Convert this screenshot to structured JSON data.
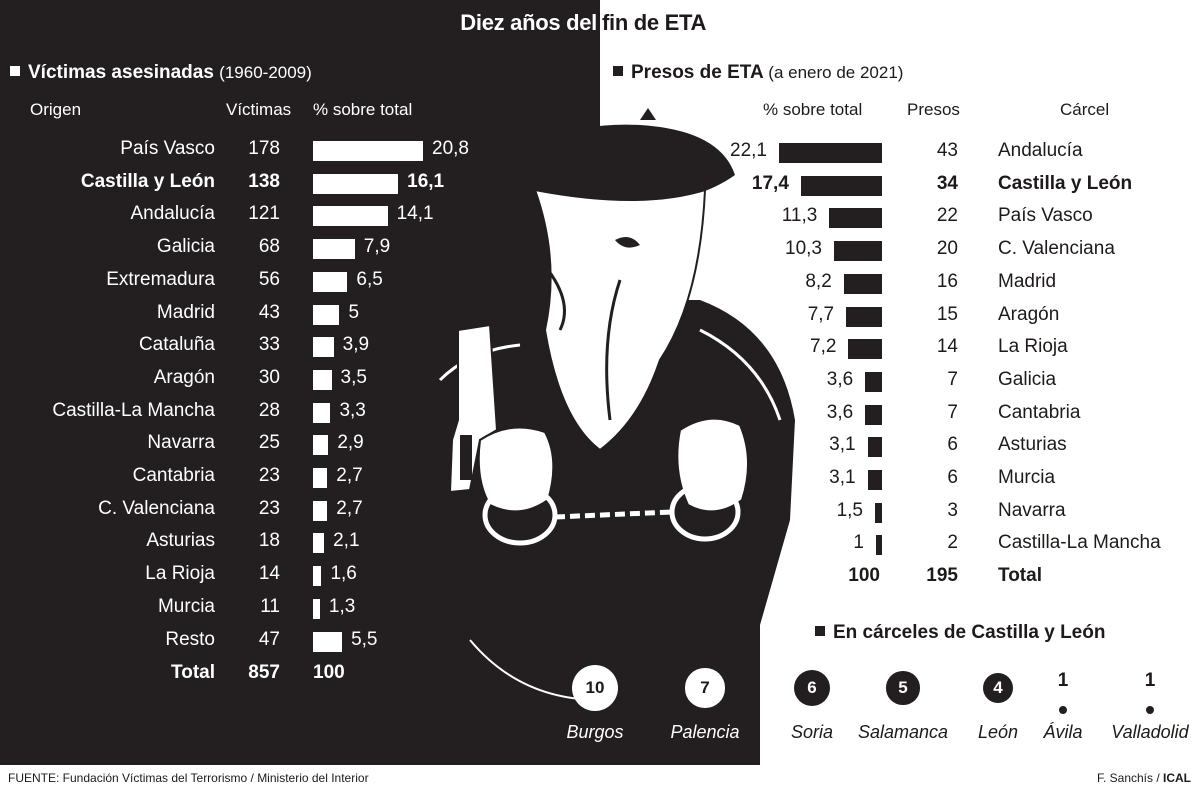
{
  "title": "Diez años del fin de ETA",
  "title_left": "Diez años del",
  "title_right": "fin de ETA",
  "victims": {
    "heading": "Víctimas asesinadas",
    "period": "(1960-2009)",
    "col_origin": "Origen",
    "col_victims": "Víctimas",
    "col_pct": "% sobre total",
    "rows": [
      {
        "origin": "País Vasco",
        "victims": "178",
        "pct": "20,8",
        "value": 20.8
      },
      {
        "origin": "Castilla y León",
        "victims": "138",
        "pct": "16,1",
        "value": 16.1,
        "bold": true
      },
      {
        "origin": "Andalucía",
        "victims": "121",
        "pct": "14,1",
        "value": 14.1
      },
      {
        "origin": "Galicia",
        "victims": "68",
        "pct": "7,9",
        "value": 7.9
      },
      {
        "origin": "Extremadura",
        "victims": "56",
        "pct": "6,5",
        "value": 6.5
      },
      {
        "origin": "Madrid",
        "victims": "43",
        "pct": "5",
        "value": 5
      },
      {
        "origin": "Cataluña",
        "victims": "33",
        "pct": "3,9",
        "value": 3.9
      },
      {
        "origin": "Aragón",
        "victims": "30",
        "pct": "3,5",
        "value": 3.5
      },
      {
        "origin": "Castilla-La Mancha",
        "victims": "28",
        "pct": "3,3",
        "value": 3.3
      },
      {
        "origin": "Navarra",
        "victims": "25",
        "pct": "2,9",
        "value": 2.9
      },
      {
        "origin": "Cantabria",
        "victims": "23",
        "pct": "2,7",
        "value": 2.7
      },
      {
        "origin": "C. Valenciana",
        "victims": "23",
        "pct": "2,7",
        "value": 2.7
      },
      {
        "origin": "Asturias",
        "victims": "18",
        "pct": "2,1",
        "value": 2.1
      },
      {
        "origin": "La Rioja",
        "victims": "14",
        "pct": "1,6",
        "value": 1.6
      },
      {
        "origin": "Murcia",
        "victims": "11",
        "pct": "1,3",
        "value": 1.3
      },
      {
        "origin": "Resto",
        "victims": "47",
        "pct": "5,5",
        "value": 5.5
      }
    ],
    "total_label": "Total",
    "total_victims": "857",
    "total_pct": "100"
  },
  "prisoners": {
    "heading": "Presos de ETA",
    "period": "(a enero de 2021)",
    "col_pct": "% sobre total",
    "col_prisoners": "Presos",
    "col_prison": "Cárcel",
    "rows": [
      {
        "pct": "22,1",
        "value": 22.1,
        "prisoners": "43",
        "prison": "Andalucía"
      },
      {
        "pct": "17,4",
        "value": 17.4,
        "prisoners": "34",
        "prison": "Castilla y León",
        "bold": true
      },
      {
        "pct": "11,3",
        "value": 11.3,
        "prisoners": "22",
        "prison": "País Vasco"
      },
      {
        "pct": "10,3",
        "value": 10.3,
        "prisoners": "20",
        "prison": "C. Valenciana"
      },
      {
        "pct": "8,2",
        "value": 8.2,
        "prisoners": "16",
        "prison": "Madrid"
      },
      {
        "pct": "7,7",
        "value": 7.7,
        "prisoners": "15",
        "prison": "Aragón"
      },
      {
        "pct": "7,2",
        "value": 7.2,
        "prisoners": "14",
        "prison": "La Rioja"
      },
      {
        "pct": "3,6",
        "value": 3.6,
        "prisoners": "7",
        "prison": "Galicia"
      },
      {
        "pct": "3,6",
        "value": 3.6,
        "prisoners": "7",
        "prison": "Cantabria"
      },
      {
        "pct": "3,1",
        "value": 3.1,
        "prisoners": "6",
        "prison": "Asturias"
      },
      {
        "pct": "3,1",
        "value": 3.1,
        "prisoners": "6",
        "prison": "Murcia"
      },
      {
        "pct": "1,5",
        "value": 1.5,
        "prisoners": "3",
        "prison": "Navarra"
      },
      {
        "pct": "1",
        "value": 1,
        "prisoners": "2",
        "prison": "Castilla-La Mancha"
      }
    ],
    "total_pct": "100",
    "total_prisoners": "195",
    "total_label": "Total"
  },
  "cyl_prisons": {
    "heading": "En cárceles de Castilla y León",
    "items": [
      {
        "city": "Burgos",
        "count": "10",
        "value": 10
      },
      {
        "city": "Palencia",
        "count": "7",
        "value": 7
      },
      {
        "city": "Soria",
        "count": "6",
        "value": 6
      },
      {
        "city": "Salamanca",
        "count": "5",
        "value": 5
      },
      {
        "city": "León",
        "count": "4",
        "value": 4
      },
      {
        "city": "Ávila",
        "count": "1",
        "value": 1
      },
      {
        "city": "Valladolid",
        "count": "1",
        "value": 1
      }
    ]
  },
  "source": "FUENTE: Fundación Víctimas del Terrorismo / Ministerio del Interior",
  "credit_author": "F. Sanchís / ",
  "credit_agency": "ICAL",
  "chart_data": [
    {
      "type": "bar",
      "title": "Víctimas asesinadas (1960-2009)",
      "xlabel": "",
      "ylabel": "% sobre total",
      "categories": [
        "País Vasco",
        "Castilla y León",
        "Andalucía",
        "Galicia",
        "Extremadura",
        "Madrid",
        "Cataluña",
        "Aragón",
        "Castilla-La Mancha",
        "Navarra",
        "Cantabria",
        "C. Valenciana",
        "Asturias",
        "La Rioja",
        "Murcia",
        "Resto"
      ],
      "series": [
        {
          "name": "Víctimas",
          "values": [
            178,
            138,
            121,
            68,
            56,
            43,
            33,
            30,
            28,
            25,
            23,
            23,
            18,
            14,
            11,
            47
          ]
        },
        {
          "name": "% sobre total",
          "values": [
            20.8,
            16.1,
            14.1,
            7.9,
            6.5,
            5,
            3.9,
            3.5,
            3.3,
            2.9,
            2.7,
            2.7,
            2.1,
            1.6,
            1.3,
            5.5
          ]
        }
      ]
    },
    {
      "type": "bar",
      "title": "Presos de ETA (a enero de 2021)",
      "xlabel": "",
      "ylabel": "% sobre total",
      "categories": [
        "Andalucía",
        "Castilla y León",
        "País Vasco",
        "C. Valenciana",
        "Madrid",
        "Aragón",
        "La Rioja",
        "Galicia",
        "Cantabria",
        "Asturias",
        "Murcia",
        "Navarra",
        "Castilla-La Mancha"
      ],
      "series": [
        {
          "name": "% sobre total",
          "values": [
            22.1,
            17.4,
            11.3,
            10.3,
            8.2,
            7.7,
            7.2,
            3.6,
            3.6,
            3.1,
            3.1,
            1.5,
            1
          ]
        },
        {
          "name": "Presos",
          "values": [
            43,
            34,
            22,
            20,
            16,
            15,
            14,
            7,
            7,
            6,
            6,
            3,
            2
          ]
        }
      ]
    },
    {
      "type": "scatter",
      "title": "En cárceles de Castilla y León",
      "categories": [
        "Burgos",
        "Palencia",
        "Soria",
        "Salamanca",
        "León",
        "Ávila",
        "Valladolid"
      ],
      "values": [
        10,
        7,
        6,
        5,
        4,
        1,
        1
      ]
    }
  ],
  "colors": {
    "dark": "#231f20",
    "light": "#ffffff"
  }
}
